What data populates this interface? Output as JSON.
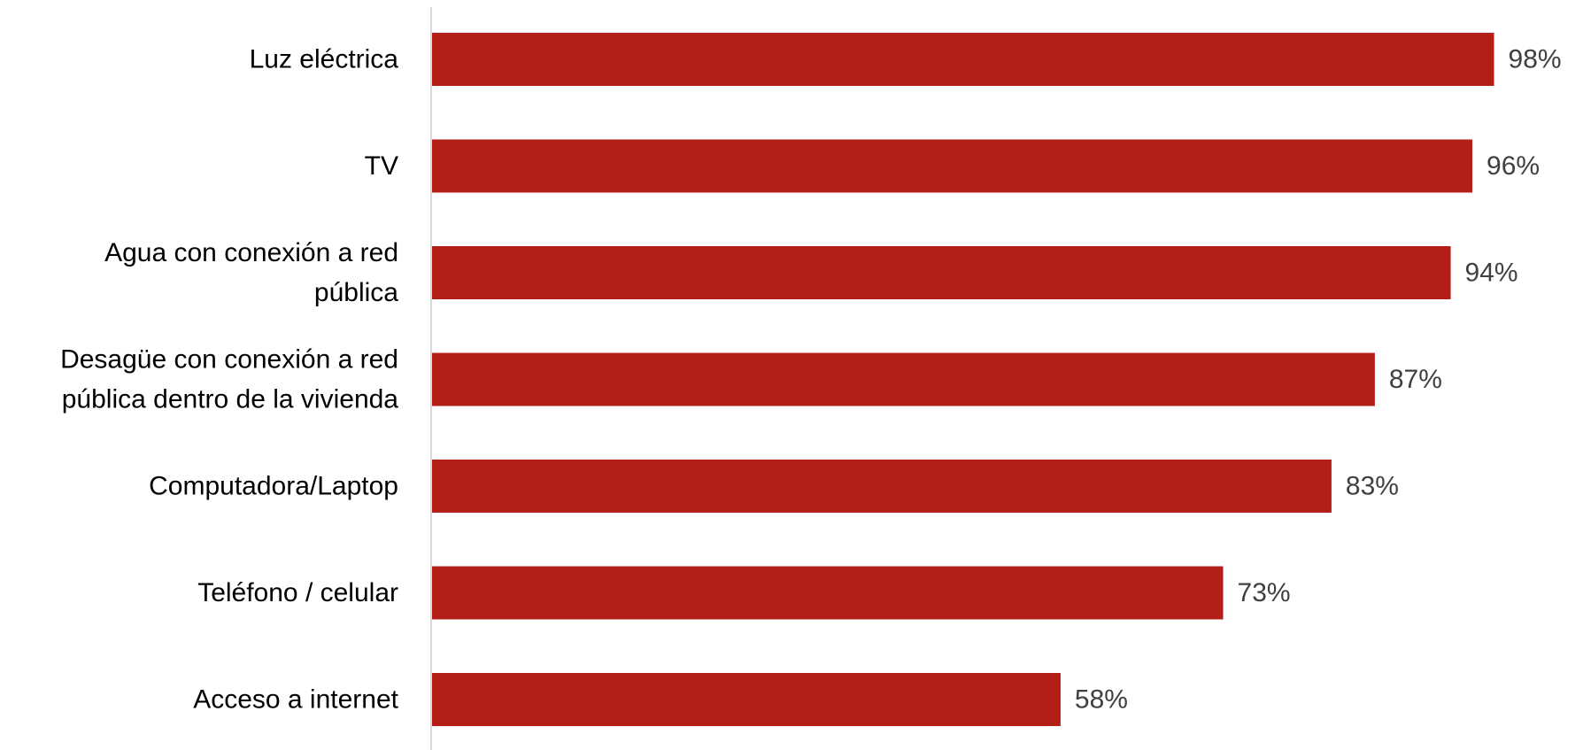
{
  "chart_data": {
    "type": "bar",
    "orientation": "horizontal",
    "categories": [
      [
        "Luz eléctrica"
      ],
      [
        "TV"
      ],
      [
        "Agua con conexión a red",
        "pública"
      ],
      [
        "Desagüe con conexión a red",
        "pública dentro de la vivienda"
      ],
      [
        "Computadora/Laptop"
      ],
      [
        "Teléfono / celular"
      ],
      [
        "Acceso a internet"
      ]
    ],
    "values": [
      98,
      96,
      94,
      87,
      83,
      73,
      58
    ],
    "value_labels": [
      "98%",
      "96%",
      "94%",
      "87%",
      "83%",
      "73%",
      "58%"
    ],
    "xlim": [
      0,
      100
    ],
    "unit": "%",
    "title": "",
    "xlabel": "",
    "ylabel": "",
    "grid": false,
    "legend": "none",
    "bar_color": "#b31f18",
    "axis_color": "#d9d9d9",
    "label_color": "#000000",
    "value_label_color": "#404040"
  }
}
